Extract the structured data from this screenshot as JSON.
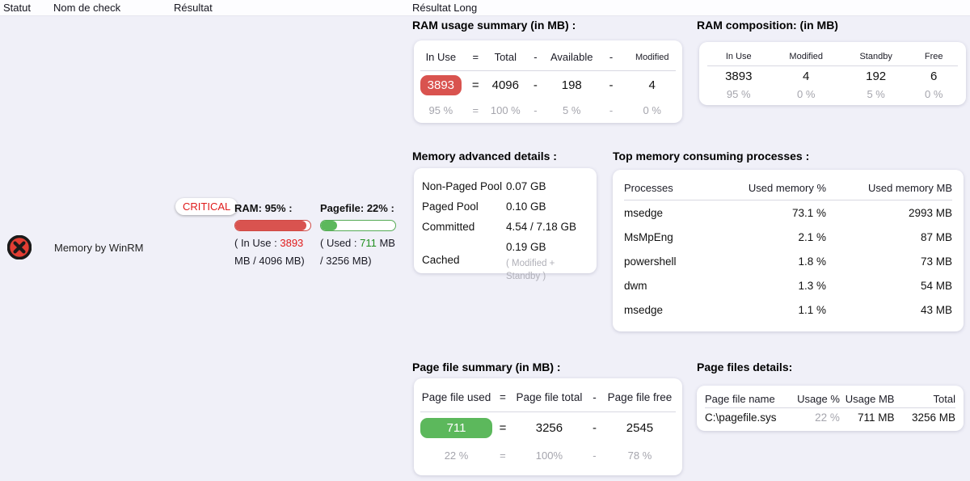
{
  "colors": {
    "critical_red": "#d9534f",
    "red_text": "#e01a1a",
    "ok_green": "#5cb85c",
    "green_text": "#1f8e1f",
    "gray_text": "#a5a5ad",
    "page_background": "#f0f0f8"
  },
  "header": {
    "statut": "Statut",
    "nom_de_check": "Nom de check",
    "resultat": "Résultat",
    "resultat_long": "Résultat Long"
  },
  "row": {
    "status": "critical",
    "check_name": "Memory by WinRM",
    "badge": "CRITICAL",
    "ram": {
      "label": "RAM:",
      "percent": "95",
      "after_percent": "% :",
      "bar_percent": 95,
      "open": "( In Use : ",
      "value": "3893",
      "rest": " MB / 4096 MB)"
    },
    "pagefile": {
      "label": "Pagefile:",
      "percent": "22",
      "after_percent": "% :",
      "bar_percent": 22,
      "open": "( Used : ",
      "value": "711",
      "rest": " MB / 3256 MB)"
    }
  },
  "ram_summary": {
    "title": "RAM usage summary (in MB) :",
    "headers": [
      "In Use",
      "=",
      "Total",
      "-",
      "Available",
      "-",
      "Modified"
    ],
    "values": [
      "3893",
      "=",
      "4096",
      "-",
      "198",
      "-",
      "4"
    ],
    "percents": [
      "95 %",
      "=",
      "100 %",
      "-",
      "5 %",
      "-",
      "0 %"
    ]
  },
  "ram_composition": {
    "title": "RAM composition: (in MB)",
    "headers": [
      "In Use",
      "Modified",
      "Standby",
      "Free"
    ],
    "values": [
      "3893",
      "4",
      "192",
      "6"
    ],
    "percents": [
      "95 %",
      "0 %",
      "5 %",
      "0 %"
    ]
  },
  "advanced": {
    "title": "Memory advanced details :",
    "rows": [
      {
        "label": "Non-Paged Pool",
        "value": "0.07 GB"
      },
      {
        "label": "Paged Pool",
        "value": "0.10 GB"
      },
      {
        "label": "Committed",
        "value": "4.54 / 7.18 GB"
      },
      {
        "label": "Cached",
        "value": "0.19 GB",
        "note": "( Modified + Standby )"
      }
    ]
  },
  "processes": {
    "title": "Top memory consuming processes :",
    "headers": [
      "Processes",
      "Used memory %",
      "Used memory MB"
    ],
    "rows": [
      [
        "msedge",
        "73.1 %",
        "2993 MB"
      ],
      [
        "MsMpEng",
        "2.1 %",
        "87 MB"
      ],
      [
        "powershell",
        "1.8 %",
        "73 MB"
      ],
      [
        "dwm",
        "1.3 %",
        "54 MB"
      ],
      [
        "msedge",
        "1.1 %",
        "43 MB"
      ]
    ]
  },
  "pagefile_summary": {
    "title": "Page file summary (in MB) :",
    "headers": [
      "Page file used",
      "=",
      "Page file total",
      "-",
      "Page file free"
    ],
    "values": [
      "711",
      "=",
      "3256",
      "-",
      "2545"
    ],
    "percents": [
      "22 %",
      "=",
      "100%",
      "-",
      "78 %"
    ]
  },
  "pagefile_details": {
    "title": "Page files details:",
    "headers": [
      "Page file name",
      "Usage %",
      "Usage MB",
      "Total"
    ],
    "row": [
      "C:\\pagefile.sys",
      "22 %",
      "711 MB",
      "3256 MB"
    ]
  }
}
